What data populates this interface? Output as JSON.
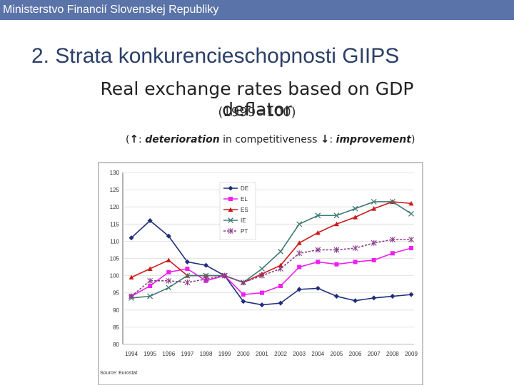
{
  "header": {
    "institution": "Ministerstvo Financií Slovenskej Republiky"
  },
  "slide": {
    "title": "2. Strata konkurencieschopnosti GIIPS"
  },
  "colors": {
    "header_bg": "#5a73a8",
    "title": "#2b3f68",
    "DE": "#1f2d7a",
    "EL": "#ee20ee",
    "ES": "#cc1a1a",
    "IE": "#3f7a72",
    "PT": "#8a3c8a"
  },
  "note": {
    "open": "(",
    "up_arrow": "↑",
    "up_sep": ": ",
    "deterioration": "deterioration",
    "middle": " in competitiveness ",
    "down_arrow": "↓",
    "down_sep": ": ",
    "improvement": "improvement",
    "close": ")"
  },
  "chart_data": {
    "type": "line",
    "title": "Real exchange rates based on GDP deflator",
    "subtitle": "(1999=100)",
    "source": "Source: Eurostat",
    "categories": [
      "1994",
      "1995",
      "1996",
      "1997",
      "1998",
      "1999",
      "2000",
      "2001",
      "2002",
      "2003",
      "2004",
      "2005",
      "2006",
      "2007",
      "2008",
      "2009"
    ],
    "ylim": [
      80,
      130
    ],
    "yticks": [
      "80",
      "85",
      "90",
      "95",
      "100",
      "105",
      "110",
      "115",
      "120",
      "125",
      "130"
    ],
    "legend_position": "top-center",
    "series": [
      {
        "name": "DE",
        "marker": "diamond",
        "values": [
          111,
          116,
          111.5,
          104,
          103,
          100,
          92.5,
          91.5,
          92,
          96,
          96.3,
          94,
          92.7,
          93.5,
          94,
          94.5
        ]
      },
      {
        "name": "EL",
        "marker": "square",
        "values": [
          94,
          97,
          101,
          102,
          98.5,
          100,
          94.5,
          95,
          97,
          102.5,
          104,
          103.3,
          104,
          104.5,
          106.5,
          108
        ]
      },
      {
        "name": "ES",
        "marker": "triangle",
        "values": [
          99.5,
          102,
          104.5,
          100,
          100,
          100,
          98,
          100.5,
          103,
          109.5,
          112.5,
          115,
          117,
          119.5,
          121.5,
          121
        ]
      },
      {
        "name": "IE",
        "marker": "x",
        "values": [
          93.5,
          94,
          96.5,
          100,
          100,
          100,
          98,
          102,
          107,
          115,
          117.5,
          117.5,
          119.5,
          121.5,
          121.5,
          118
        ]
      },
      {
        "name": "PT",
        "marker": "star",
        "values": [
          94,
          98.5,
          98.5,
          98,
          99,
          100,
          98,
          100,
          102,
          106.5,
          107.5,
          107.5,
          108,
          109.5,
          110.5,
          110.5
        ]
      }
    ]
  }
}
